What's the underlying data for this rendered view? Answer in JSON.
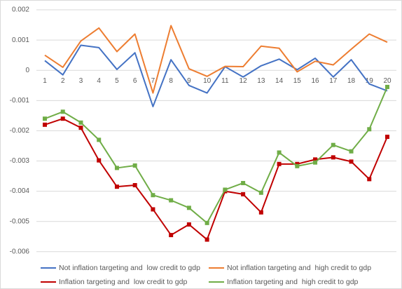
{
  "chart_data": {
    "type": "line",
    "categories": [
      1,
      2,
      3,
      4,
      5,
      6,
      7,
      8,
      9,
      10,
      11,
      12,
      13,
      14,
      15,
      16,
      17,
      18,
      19,
      20
    ],
    "ylim": [
      -0.00626,
      0.00221
    ],
    "yticks": [
      0.002,
      0.001,
      0,
      -0.001,
      -0.002,
      -0.003,
      -0.004,
      -0.005,
      -0.006
    ],
    "grid": true,
    "legend": "bottom",
    "series": [
      {
        "name": "Not inflation targeting and  low credit to gdp",
        "color": "#4472c4",
        "markers": false,
        "values": [
          0.00032,
          -0.00015,
          0.00083,
          0.00075,
          3e-05,
          0.00058,
          -0.0012,
          0.00035,
          -0.0005,
          -0.00075,
          0.00012,
          -0.00022,
          0.00015,
          0.00037,
          2e-05,
          0.0004,
          -0.00022,
          0.00035,
          -0.00045,
          -0.00068
        ]
      },
      {
        "name": "Not inflation targeting and  high credit to gdp",
        "color": "#ed7d31",
        "markers": false,
        "values": [
          0.0005,
          0.0001,
          0.00097,
          0.0014,
          0.00062,
          0.0012,
          -0.00075,
          0.00148,
          5e-05,
          -0.0002,
          0.00013,
          0.00012,
          0.0008,
          0.00073,
          -5e-05,
          0.0003,
          0.00018,
          0.0007,
          0.0012,
          0.00093
        ]
      },
      {
        "name": "Inflation targeting and  low credit to gdp",
        "color": "#c00000",
        "markers": true,
        "values": [
          -0.0018,
          -0.0016,
          -0.0019,
          -0.00298,
          -0.00385,
          -0.0038,
          -0.0046,
          -0.00545,
          -0.0051,
          -0.0056,
          -0.004,
          -0.0041,
          -0.0047,
          -0.0031,
          -0.0031,
          -0.00295,
          -0.00288,
          -0.00302,
          -0.0036,
          -0.0022
        ]
      },
      {
        "name": "Inflation targeting and  high credit to gdp",
        "color": "#70ad47",
        "markers": true,
        "values": [
          -0.0016,
          -0.00137,
          -0.00173,
          -0.0023,
          -0.00323,
          -0.00315,
          -0.00413,
          -0.0043,
          -0.00455,
          -0.00505,
          -0.00395,
          -0.00373,
          -0.00405,
          -0.00272,
          -0.00317,
          -0.00305,
          -0.00247,
          -0.00268,
          -0.00195,
          -0.00055
        ]
      }
    ]
  }
}
